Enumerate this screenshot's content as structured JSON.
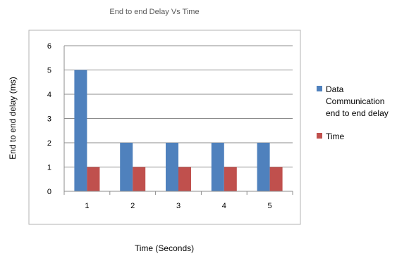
{
  "chart_data": {
    "type": "bar",
    "title": "End to end Delay Vs Time",
    "xlabel": "Time (Seconds)",
    "ylabel": "End to end delay (ms)",
    "categories": [
      "1",
      "2",
      "3",
      "4",
      "5"
    ],
    "ylim": [
      0,
      6
    ],
    "yticks": [
      "0",
      "1",
      "2",
      "3",
      "4",
      "5",
      "6"
    ],
    "grid": true,
    "legend_position": "right",
    "series": [
      {
        "name": "Data Communication end to end delay",
        "legend_lines": [
          "Data",
          "Communication",
          "end to end delay"
        ],
        "values": [
          5,
          2,
          2,
          2,
          2
        ],
        "color": "#4F81BD"
      },
      {
        "name": "Time",
        "legend_lines": [
          "Time"
        ],
        "values": [
          1,
          1,
          1,
          1,
          1
        ],
        "color": "#C0504D"
      }
    ]
  }
}
